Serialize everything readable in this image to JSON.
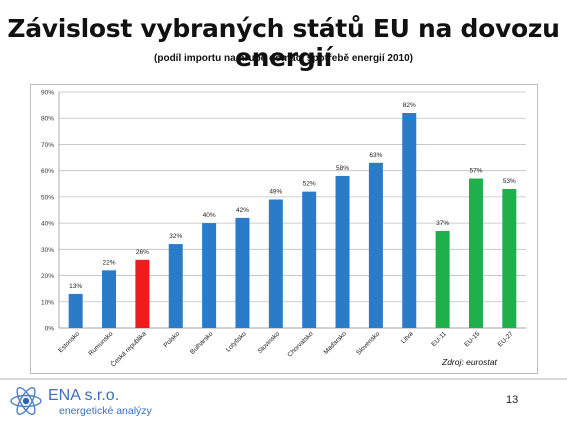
{
  "title": "Závislost vybraných států EU na dovozu energií",
  "subtitle": "(podíl importu na hrubé domácí spotřebě energií 2010)",
  "source": "Zdroj: eurostat",
  "page_number": "13",
  "logo": {
    "name": "ENA s.r.o.",
    "tagline": "energetické analýzy"
  },
  "colors": {
    "blue": "#2a7bc8",
    "red": "#ee1c1c",
    "green": "#1fb04b",
    "grid": "#bfbfbf"
  },
  "chart_data": {
    "type": "bar",
    "title": "Závislost vybraných států EU na dovozu energií",
    "subtitle": "(podíl importu na hrubé domácí spotřebě energií 2010)",
    "ylim": [
      0,
      90
    ],
    "yticks": [
      "0%",
      "10%",
      "20%",
      "30%",
      "40%",
      "50%",
      "60%",
      "70%",
      "80%",
      "90%"
    ],
    "grid": true,
    "categories": [
      "Estonsko",
      "Rumunsko",
      "Česká republika",
      "Polsko",
      "Bulharsko",
      "Lotyšsko",
      "Slovinsko",
      "Chorvatsko",
      "Maďarsko",
      "Slovensko",
      "Litva",
      "EU-11",
      "EU-15",
      "EU-27"
    ],
    "values": [
      13,
      22,
      26,
      32,
      40,
      42,
      49,
      52,
      58,
      63,
      82,
      37,
      57,
      53
    ],
    "labels": [
      "13%",
      "22%",
      "26%",
      "32%",
      "40%",
      "42%",
      "49%",
      "52%",
      "58%",
      "63%",
      "82%",
      "37%",
      "57%",
      "53%"
    ],
    "bar_colors": [
      "blue",
      "blue",
      "red",
      "blue",
      "blue",
      "blue",
      "blue",
      "blue",
      "blue",
      "blue",
      "blue",
      "green",
      "green",
      "green"
    ]
  }
}
